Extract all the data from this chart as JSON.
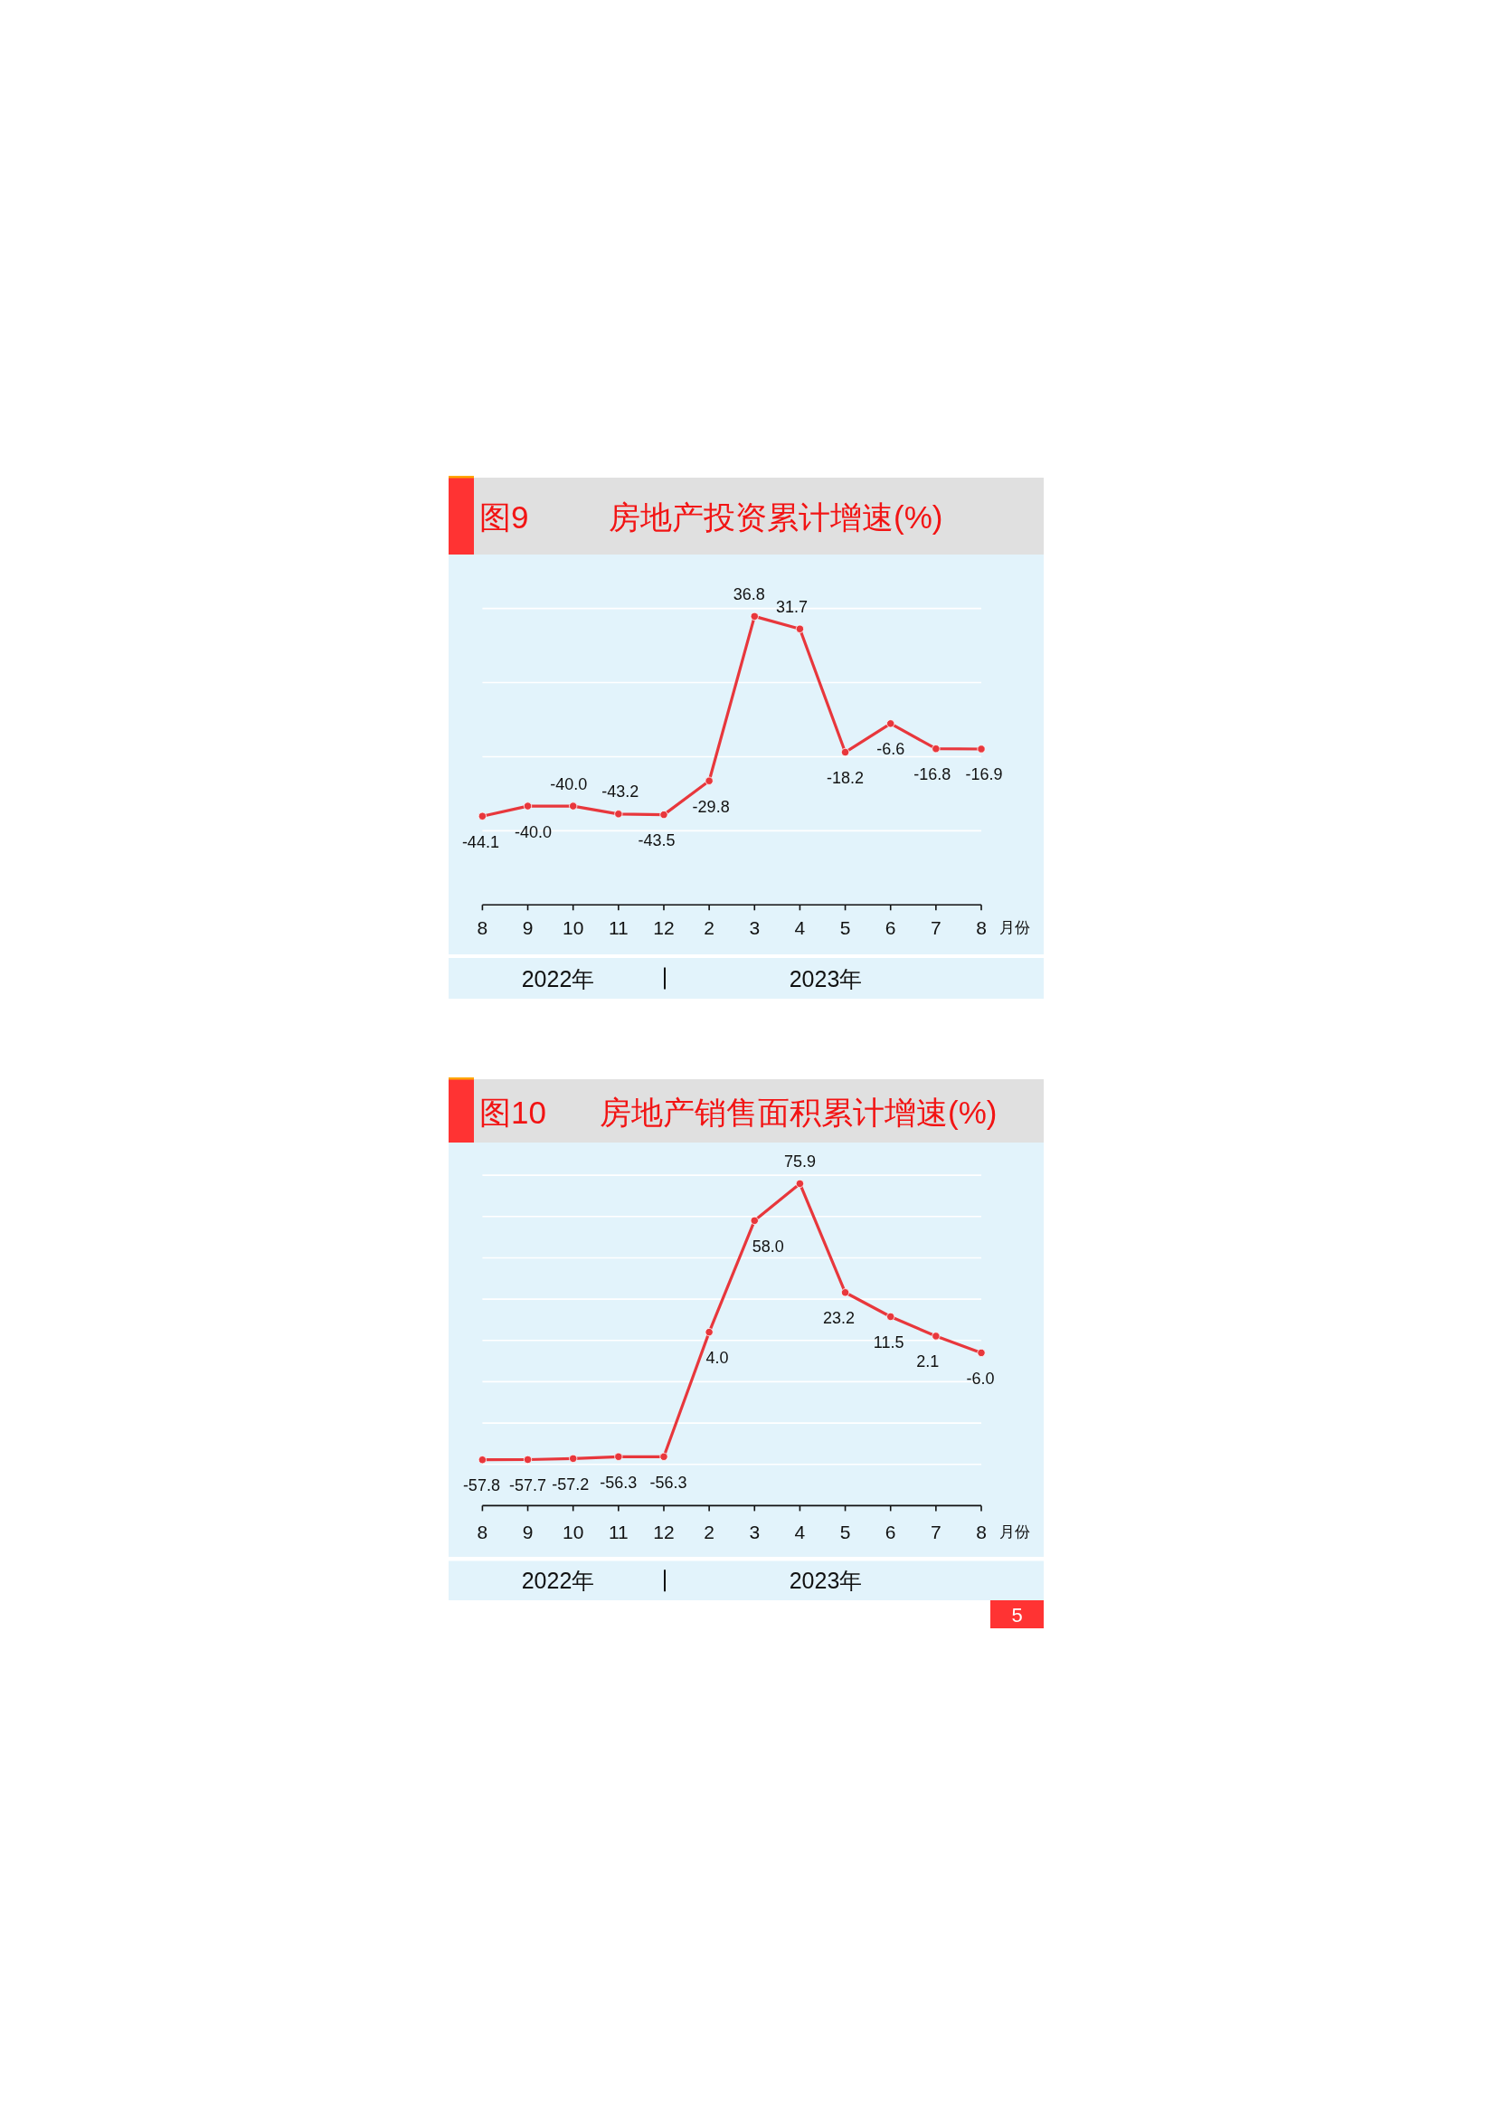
{
  "chart_data": [
    {
      "type": "line",
      "title": "房地产投资累计增速(%)",
      "xlabel": "月份",
      "categories": [
        "8",
        "9",
        "10",
        "11",
        "12",
        "2",
        "3",
        "4",
        "5",
        "6",
        "7",
        "8"
      ],
      "series": [
        {
          "color": "#e8373c",
          "values": [
            -44.1,
            -40.0,
            -40.0,
            -43.2,
            -43.5,
            -29.8,
            36.8,
            31.7,
            -18.2,
            -6.6,
            -16.8,
            -16.9
          ],
          "value_labels": [
            "-44.1",
            "-40.0",
            "-40.0",
            "-43.2",
            "-43.5",
            "-29.8",
            "36.8",
            "31.7",
            "-18.2",
            "-6.6",
            "-16.8",
            "-16.9"
          ]
        }
      ],
      "ylim": [
        -80,
        40
      ],
      "yticks": [
        {
          "value": -50,
          "label": null
        },
        {
          "value": -20,
          "label": null
        },
        {
          "value": 10,
          "label": null
        },
        {
          "value": 40,
          "label": null
        }
      ],
      "grid": "y",
      "tick_labels": "x",
      "marker": "circle",
      "annotations": [
        "图9",
        "2022年",
        "2023年"
      ]
    },
    {
      "type": "line",
      "title": "房地产销售面积累计增速(%)",
      "xlabel": "月份",
      "categories": [
        "8",
        "9",
        "10",
        "11",
        "12",
        "2",
        "3",
        "4",
        "5",
        "6",
        "7",
        "8"
      ],
      "series": [
        {
          "color": "#e8373c",
          "values": [
            -57.8,
            -57.7,
            -57.2,
            -56.3,
            -56.3,
            4.0,
            58.0,
            75.9,
            23.2,
            11.5,
            2.1,
            -6.0
          ],
          "value_labels": [
            "-57.8",
            "-57.7",
            "-57.2",
            "-56.3",
            "-56.3",
            "4.0",
            "58.0",
            "75.9",
            "23.2",
            "11.5",
            "2.1",
            "-6.0"
          ]
        }
      ],
      "ylim": [
        -80,
        80
      ],
      "yticks": [
        {
          "value": -60,
          "label": null
        },
        {
          "value": -40,
          "label": null
        },
        {
          "value": -20,
          "label": null
        },
        {
          "value": 0,
          "label": null
        },
        {
          "value": 20,
          "label": null
        },
        {
          "value": 40,
          "label": null
        },
        {
          "value": 60,
          "label": null
        },
        {
          "value": 80,
          "label": null
        }
      ],
      "grid": "y",
      "tick_labels": "x",
      "marker": "circle",
      "annotations": [
        "图10",
        "2022年",
        "2023年",
        "5"
      ]
    }
  ]
}
